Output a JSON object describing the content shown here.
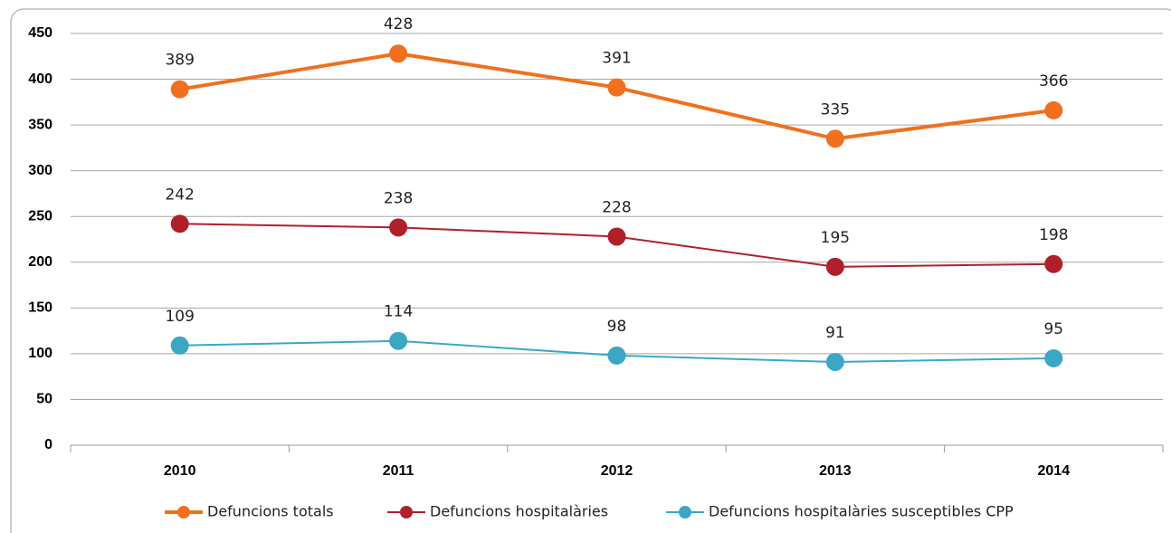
{
  "chart_data": {
    "type": "line",
    "categories": [
      "2010",
      "2011",
      "2012",
      "2013",
      "2014"
    ],
    "series": [
      {
        "name": "Defuncions totals",
        "color": "#f07020",
        "values": [
          389,
          428,
          391,
          335,
          366
        ]
      },
      {
        "name": "Defuncions hospitalàries",
        "color": "#b0202a",
        "values": [
          242,
          238,
          228,
          195,
          198
        ]
      },
      {
        "name": "Defuncions hospitalàries susceptibles CPP",
        "color": "#3ba7c5",
        "values": [
          109,
          114,
          98,
          91,
          95
        ]
      }
    ],
    "ylim": [
      0,
      450
    ],
    "yticks": [
      0,
      50,
      100,
      150,
      200,
      250,
      300,
      350,
      400,
      450
    ],
    "grid": true,
    "legend": "bottom"
  }
}
